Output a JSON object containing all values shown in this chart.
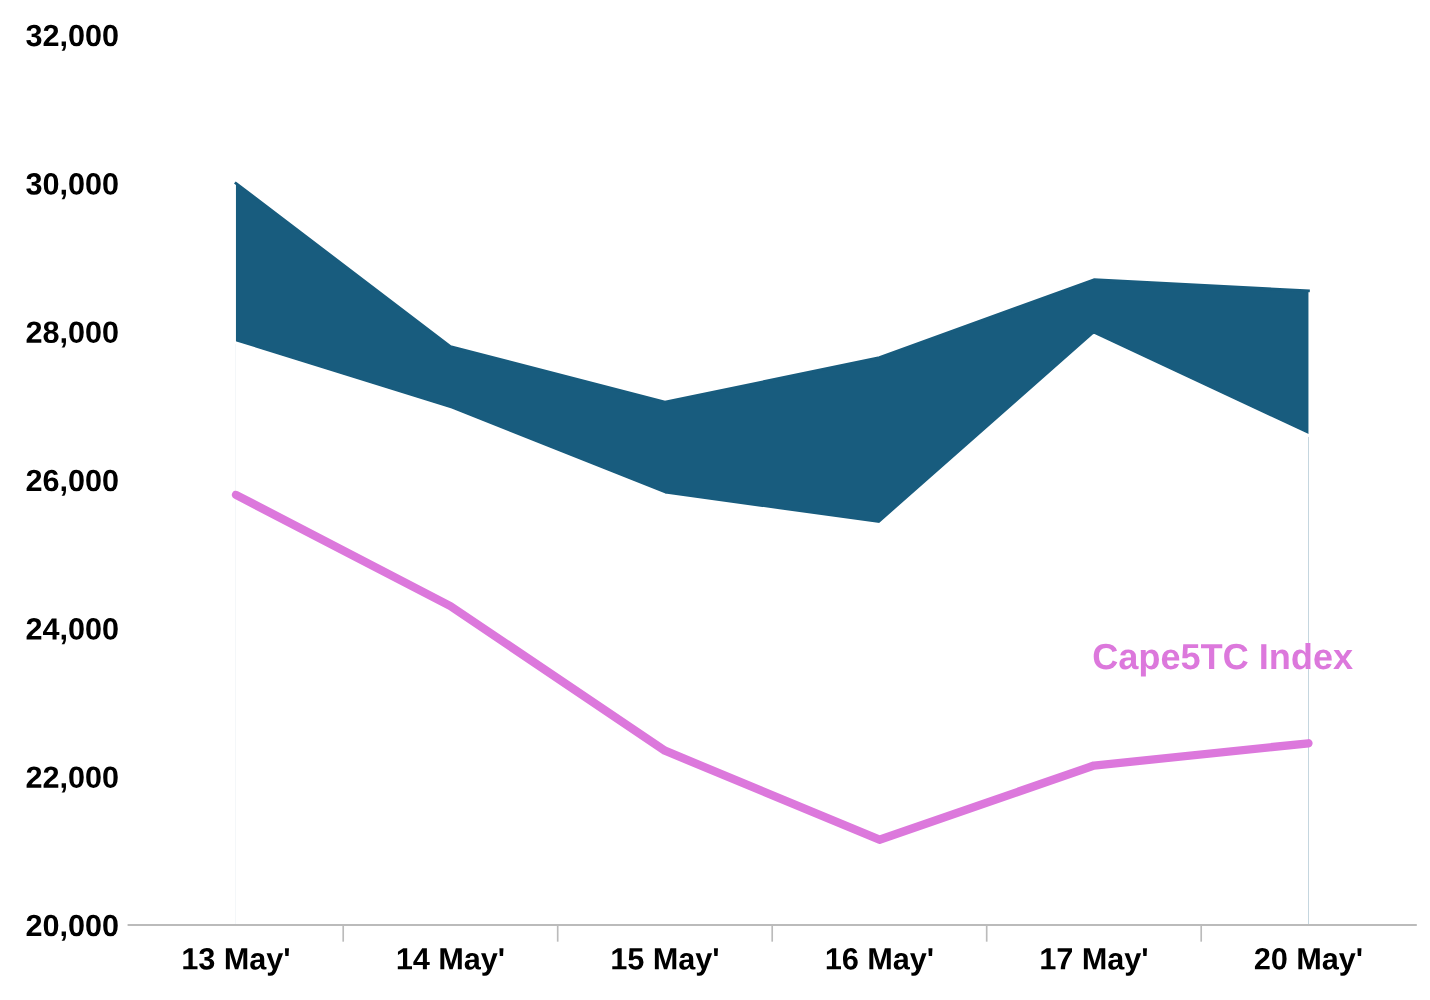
{
  "chart_data": {
    "type": "area",
    "categories": [
      "13 May'",
      "14 May'",
      "15 May'",
      "16 May'",
      "17 May'",
      "20 May'"
    ],
    "series": [
      {
        "color": "#185c7e",
        "values": [
          30000,
          27800,
          27050,
          27650,
          28700,
          28550
        ]
      },
      {
        "color": "#ffffff",
        "values": [
          27850,
          26950,
          25800,
          25400,
          27950,
          26600
        ]
      },
      {
        "type": "line",
        "name": "Cape5TC Index",
        "color": "#dc78dc",
        "values": [
          25800,
          24300,
          22350,
          21150,
          22150,
          22450
        ]
      }
    ],
    "ylim": [
      20000,
      32000
    ],
    "yticks": [
      {
        "value": 20000,
        "label": "20,000"
      },
      {
        "value": 22000,
        "label": "22,000"
      },
      {
        "value": 24000,
        "label": "24,000"
      },
      {
        "value": 26000,
        "label": "26,000"
      },
      {
        "value": 28000,
        "label": "28,000"
      },
      {
        "value": 30000,
        "label": "30,000"
      },
      {
        "value": 32000,
        "label": "32,000"
      }
    ],
    "grid": false,
    "legend": false
  }
}
